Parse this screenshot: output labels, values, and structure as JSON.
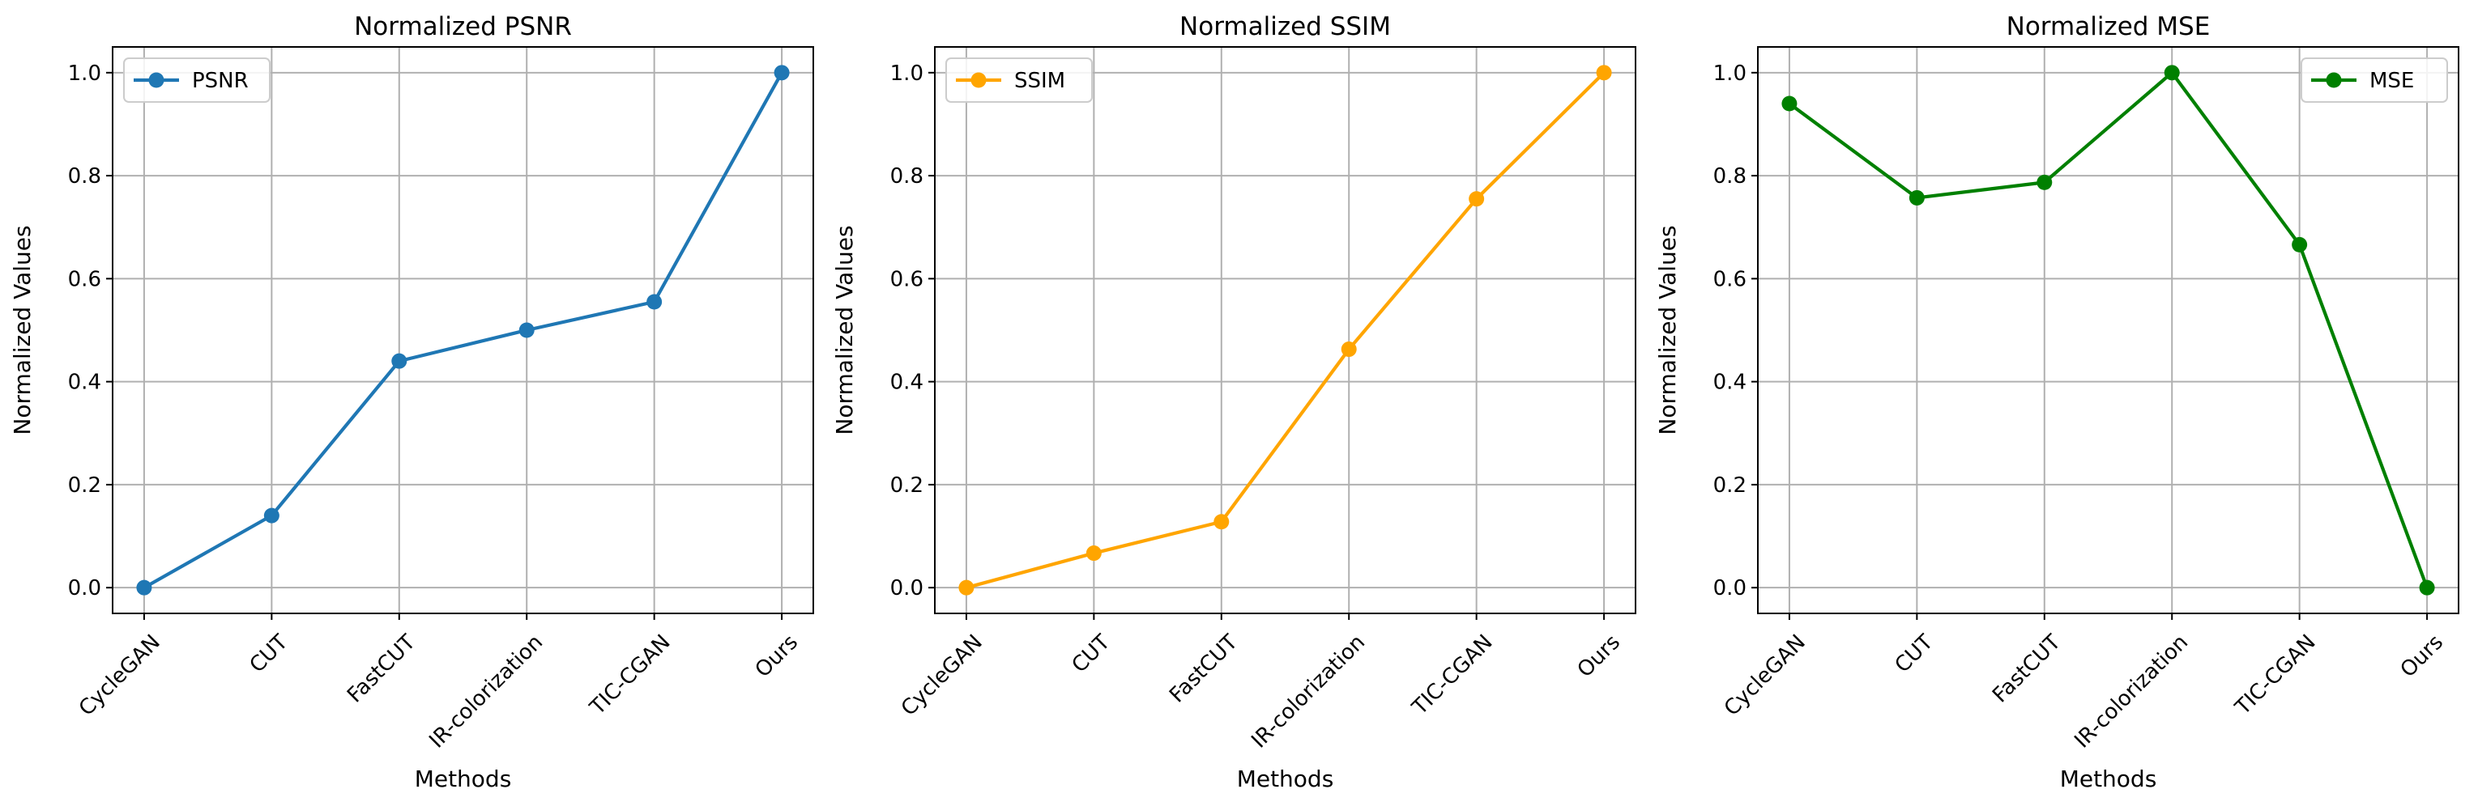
{
  "chart_data": [
    {
      "type": "line",
      "title": "Normalized PSNR",
      "xlabel": "Methods",
      "ylabel": "Normalized Values",
      "categories": [
        "CycleGAN",
        "CUT",
        "FastCUT",
        "IR-colorization",
        "TIC-CGAN",
        "Ours"
      ],
      "series": [
        {
          "name": "PSNR",
          "color": "#1f77b4",
          "values": [
            0.0,
            0.14,
            0.44,
            0.5,
            0.555,
            1.0
          ]
        }
      ],
      "ylim": [
        -0.05,
        1.05
      ],
      "yticks": [
        "0.0",
        "0.2",
        "0.4",
        "0.6",
        "0.8",
        "1.0"
      ],
      "grid": true,
      "legend": "top-left"
    },
    {
      "type": "line",
      "title": "Normalized SSIM",
      "xlabel": "Methods",
      "ylabel": "Normalized Values",
      "categories": [
        "CycleGAN",
        "CUT",
        "FastCUT",
        "IR-colorization",
        "TIC-CGAN",
        "Ours"
      ],
      "series": [
        {
          "name": "SSIM",
          "color": "#ffa500",
          "values": [
            0.0,
            0.067,
            0.128,
            0.463,
            0.755,
            1.0
          ]
        }
      ],
      "ylim": [
        -0.05,
        1.05
      ],
      "yticks": [
        "0.0",
        "0.2",
        "0.4",
        "0.6",
        "0.8",
        "1.0"
      ],
      "grid": true,
      "legend": "top-left"
    },
    {
      "type": "line",
      "title": "Normalized MSE",
      "xlabel": "Methods",
      "ylabel": "Normalized Values",
      "categories": [
        "CycleGAN",
        "CUT",
        "FastCUT",
        "IR-colorization",
        "TIC-CGAN",
        "Ours"
      ],
      "series": [
        {
          "name": "MSE",
          "color": "#008000",
          "values": [
            0.94,
            0.757,
            0.787,
            1.0,
            0.666,
            0.0
          ]
        }
      ],
      "ylim": [
        -0.05,
        1.05
      ],
      "yticks": [
        "0.0",
        "0.2",
        "0.4",
        "0.6",
        "0.8",
        "1.0"
      ],
      "grid": true,
      "legend": "top-right"
    }
  ]
}
